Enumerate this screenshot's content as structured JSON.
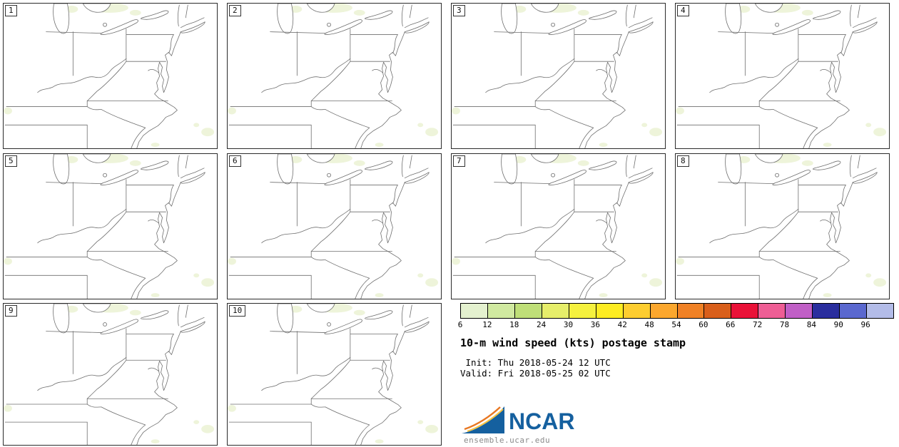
{
  "panels": [
    {
      "label": "1"
    },
    {
      "label": "2"
    },
    {
      "label": "3"
    },
    {
      "label": "4"
    },
    {
      "label": "5"
    },
    {
      "label": "6"
    },
    {
      "label": "7"
    },
    {
      "label": "8"
    },
    {
      "label": "9"
    },
    {
      "label": "10"
    }
  ],
  "colorbar": {
    "ticks": [
      "6",
      "12",
      "18",
      "24",
      "30",
      "36",
      "42",
      "48",
      "54",
      "60",
      "66",
      "72",
      "78",
      "84",
      "90",
      "96"
    ],
    "colors": [
      "#e4f1cf",
      "#d0e9a0",
      "#bfdf78",
      "#e6ee6a",
      "#f5f13e",
      "#fdec22",
      "#fdcd30",
      "#fba72e",
      "#f08125",
      "#d95f1b",
      "#ea1238",
      "#ee5e95",
      "#c05fc6",
      "#2a2e9e",
      "#5a68cf",
      "#b3bce8"
    ]
  },
  "legend": {
    "title": "10-m wind speed (kts) postage stamp",
    "init": " Init: Thu 2018-05-24 12 UTC",
    "valid": "Valid: Fri 2018-05-25 02 UTC"
  },
  "logo": {
    "name": "NCAR",
    "site": "ensemble.ucar.edu"
  }
}
